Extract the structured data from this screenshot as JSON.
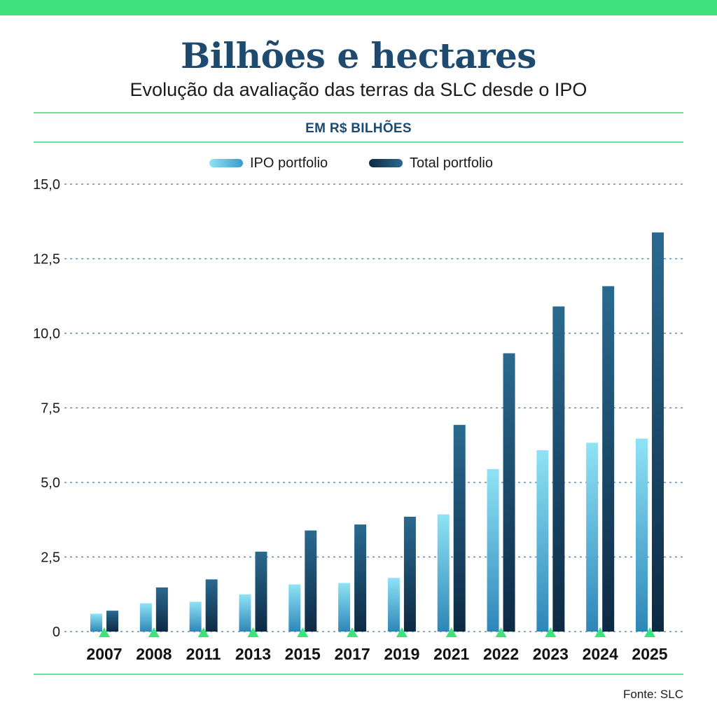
{
  "title": "Bilhões e hectares",
  "subtitle": "Evolução da avaliação das terras da SLC desde o IPO",
  "unit_label": "EM R$ BILHÕES",
  "source": "Fonte: SLC",
  "colors": {
    "accent": "#3de27d",
    "title": "#1d4a6e",
    "ipo_top": "#8fe3f5",
    "ipo_bottom": "#2e86b8",
    "total_top": "#2a6a90",
    "total_bottom": "#0d2a44",
    "grid": "#6d8aa6"
  },
  "chart_data": {
    "type": "bar",
    "categories": [
      "2007",
      "2008",
      "2011",
      "2013",
      "2015",
      "2017",
      "2019",
      "2021",
      "2022",
      "2023",
      "2024",
      "2025"
    ],
    "series": [
      {
        "name": "IPO portfolio",
        "values": [
          0.6,
          0.95,
          1.0,
          1.25,
          1.58,
          1.63,
          1.8,
          3.93,
          5.45,
          6.08,
          6.33,
          6.47
        ]
      },
      {
        "name": "Total portfolio",
        "values": [
          0.7,
          1.48,
          1.75,
          2.68,
          3.39,
          3.59,
          3.85,
          6.93,
          9.33,
          10.9,
          11.58,
          13.38
        ]
      }
    ],
    "yticks": [
      "0",
      "2,5",
      "5,0",
      "7,5",
      "10,0",
      "12,5",
      "15,0"
    ],
    "ytick_values": [
      0,
      2.5,
      5,
      7.5,
      10,
      12.5,
      15
    ],
    "ylim": [
      0,
      15
    ],
    "grid": true,
    "legend_position": "top-center"
  }
}
